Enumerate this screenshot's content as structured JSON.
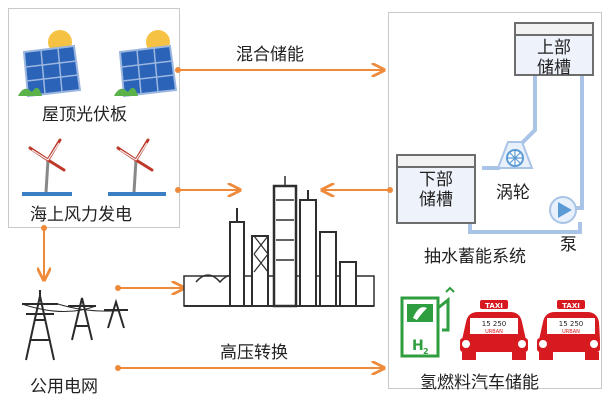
{
  "sources": {
    "solar_label": "屋顶光伏板",
    "wind_label": "海上风力发电"
  },
  "grid": {
    "label": "公用电网"
  },
  "flows": {
    "hybrid_storage": "混合储能",
    "high_voltage": "高压转换"
  },
  "pumped_hydro": {
    "upper_tank": [
      "上部",
      "储槽"
    ],
    "lower_tank": [
      "下部",
      "储槽"
    ],
    "turbine": "涡轮",
    "pump": "泵",
    "system_label": "抽水蓄能系统"
  },
  "hydrogen": {
    "label": "氢燃料汽车储能",
    "h2_symbol": "H",
    "h2_subscript": "2",
    "taxi_sign": "TAXI",
    "plate_number": "15 250",
    "plate_text": "URBAN"
  },
  "colors": {
    "arrow": "#ef8a3a",
    "pipe": "#a9c4e6",
    "red": "#d71920",
    "green": "#2e9e3f"
  }
}
